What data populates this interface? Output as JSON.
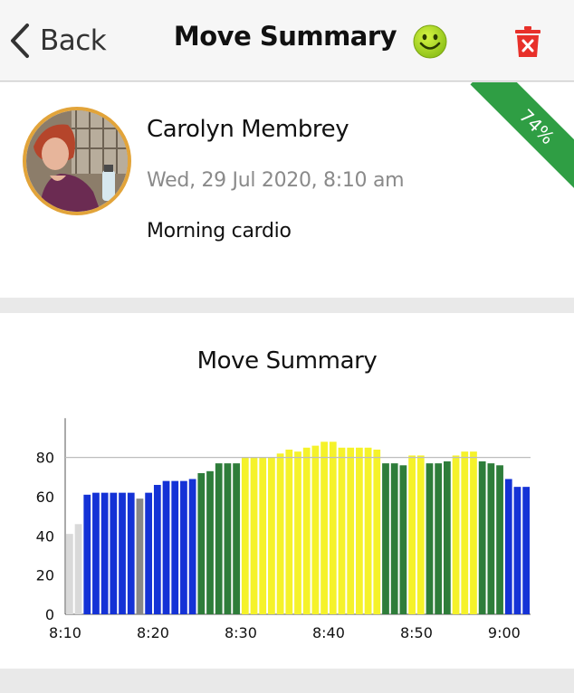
{
  "header": {
    "back_label": "Back",
    "title": "Move Summary",
    "status_icon": "smiley-face-icon",
    "delete_icon": "trash-icon"
  },
  "profile": {
    "name": "Carolyn Membrey",
    "date": "Wed, 29 Jul 2020, 8:10 am",
    "description": "Morning cardio",
    "percent_badge": "74%",
    "avatar_ring_color": "#e2a43a",
    "badge_color": "#2f9e44"
  },
  "colors": {
    "grey": "#d9d9d9",
    "darkgrey": "#888888",
    "blue": "#1432d6",
    "green": "#2e7d3a",
    "yellow": "#f5f22a"
  },
  "chart_data": {
    "type": "bar",
    "title": "Move Summary",
    "xlabel": "",
    "ylabel": "",
    "ylim": [
      0,
      100
    ],
    "yticks": [
      0,
      20,
      40,
      60,
      80
    ],
    "reference_line": 80,
    "x_tick_labels": [
      "8:10",
      "8:20",
      "8:30",
      "8:40",
      "8:50",
      "9:00"
    ],
    "values": [
      41,
      46,
      61,
      62,
      62,
      62,
      62,
      62,
      59,
      62,
      66,
      68,
      68,
      68,
      69,
      72,
      73,
      77,
      77,
      77,
      80,
      80,
      80,
      80,
      82,
      84,
      83,
      85,
      86,
      88,
      88,
      85,
      85,
      85,
      85,
      84,
      77,
      77,
      76,
      81,
      81,
      77,
      77,
      78,
      81,
      83,
      83,
      78,
      77,
      76,
      69,
      65,
      65
    ],
    "zones": [
      "grey",
      "grey",
      "blue",
      "blue",
      "blue",
      "blue",
      "blue",
      "blue",
      "darkgrey",
      "blue",
      "blue",
      "blue",
      "blue",
      "blue",
      "blue",
      "green",
      "green",
      "green",
      "green",
      "green",
      "yellow",
      "yellow",
      "yellow",
      "yellow",
      "yellow",
      "yellow",
      "yellow",
      "yellow",
      "yellow",
      "yellow",
      "yellow",
      "yellow",
      "yellow",
      "yellow",
      "yellow",
      "yellow",
      "green",
      "green",
      "green",
      "yellow",
      "yellow",
      "green",
      "green",
      "green",
      "yellow",
      "yellow",
      "yellow",
      "green",
      "green",
      "green",
      "blue",
      "blue",
      "blue"
    ]
  }
}
